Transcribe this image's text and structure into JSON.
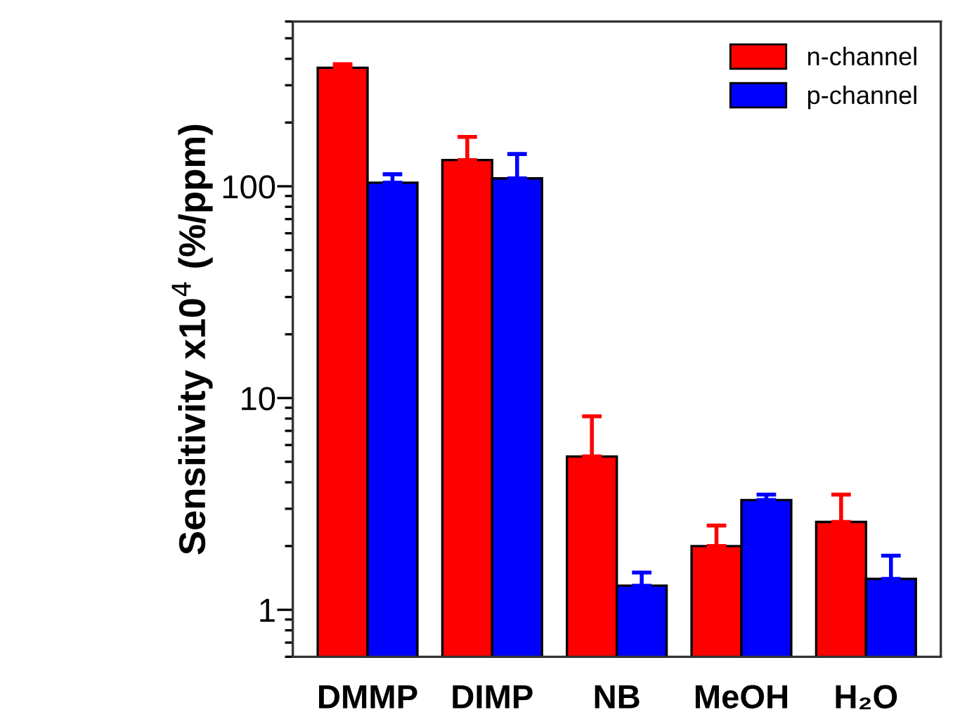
{
  "chart_data": {
    "type": "bar",
    "ylabel": "Sensitivity x10$^{4}$ (%/ppm)",
    "categories": [
      "DMMP",
      "DIMP",
      "NB",
      "MeOH",
      "H₂O"
    ],
    "series": [
      {
        "name": "n-channel",
        "color": "#ff0000",
        "values": [
          363,
          133,
          5.3,
          2.0,
          2.6
        ],
        "errors": [
          [
            363,
            377
          ],
          [
            133,
            171
          ],
          [
            5.3,
            8.2
          ],
          [
            2.0,
            2.5
          ],
          [
            2.6,
            3.5
          ]
        ]
      },
      {
        "name": "p-channel",
        "color": "#0000ff",
        "values": [
          104,
          109,
          1.3,
          3.3,
          1.4
        ],
        "errors": [
          [
            104,
            114
          ],
          [
            109,
            142
          ],
          [
            1.3,
            1.5
          ],
          [
            3.3,
            3.5
          ],
          [
            1.4,
            1.8
          ]
        ]
      }
    ],
    "log": "y",
    "ylim": [
      0.6,
      600
    ],
    "yticks": [
      {
        "value": 0.6,
        "label": null
      },
      {
        "value": 0.7,
        "label": null
      },
      {
        "value": 0.8,
        "label": null
      },
      {
        "value": 0.9,
        "label": null
      },
      1,
      {
        "value": 2,
        "label": null
      },
      {
        "value": 3,
        "label": null
      },
      {
        "value": 4,
        "label": null
      },
      {
        "value": 5,
        "label": null
      },
      {
        "value": 6,
        "label": null
      },
      {
        "value": 7,
        "label": null
      },
      {
        "value": 8,
        "label": null
      },
      {
        "value": 9,
        "label": null
      },
      10,
      {
        "value": 20,
        "label": null
      },
      {
        "value": 30,
        "label": null
      },
      {
        "value": 40,
        "label": null
      },
      {
        "value": 50,
        "label": null
      },
      {
        "value": 60,
        "label": null
      },
      {
        "value": 70,
        "label": null
      },
      {
        "value": 80,
        "label": null
      },
      {
        "value": 90,
        "label": null
      },
      100,
      {
        "value": 200,
        "label": null
      },
      {
        "value": 300,
        "label": null
      },
      {
        "value": 400,
        "label": null
      },
      {
        "value": 500,
        "label": null
      },
      {
        "value": 600,
        "label": null
      }
    ],
    "legend": "top right",
    "grid": false
  }
}
